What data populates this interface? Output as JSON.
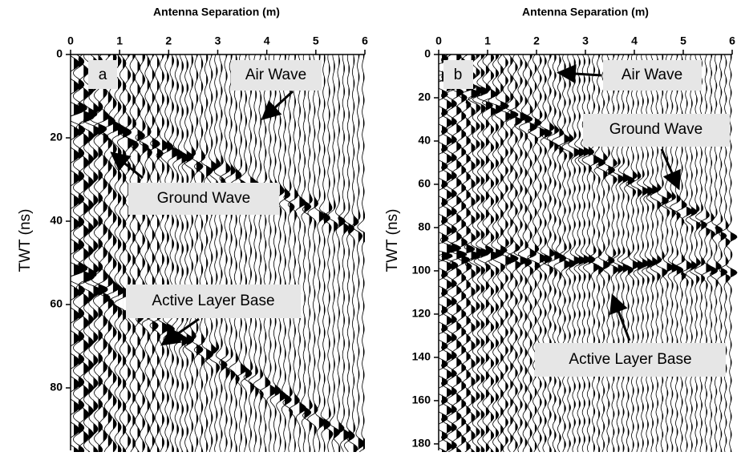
{
  "panels": [
    {
      "label": "a",
      "x_axis_title": "Antenna Separation (m)",
      "y_axis_title": "TWT (ns)",
      "xlim": [
        0,
        6
      ],
      "xticks": [
        0,
        1,
        2,
        3,
        4,
        5,
        6
      ],
      "ylim": [
        0,
        95
      ],
      "yticks": [
        0,
        20,
        40,
        60,
        80
      ],
      "annotations": [
        "Air Wave",
        "Ground Wave",
        "Active Layer Base"
      ]
    },
    {
      "label": "b",
      "x_axis_title": "Antenna Separation (m)",
      "y_axis_title": "TWT (ns)",
      "xlim": [
        0,
        6
      ],
      "xticks": [
        0,
        1,
        2,
        3,
        4,
        5,
        6
      ],
      "ylim": [
        0,
        183
      ],
      "yticks": [
        0,
        20,
        40,
        60,
        80,
        100,
        120,
        140,
        160,
        180
      ],
      "annotations": [
        "Air Wave",
        "Ground Wave",
        "Active Layer Base"
      ]
    }
  ]
}
